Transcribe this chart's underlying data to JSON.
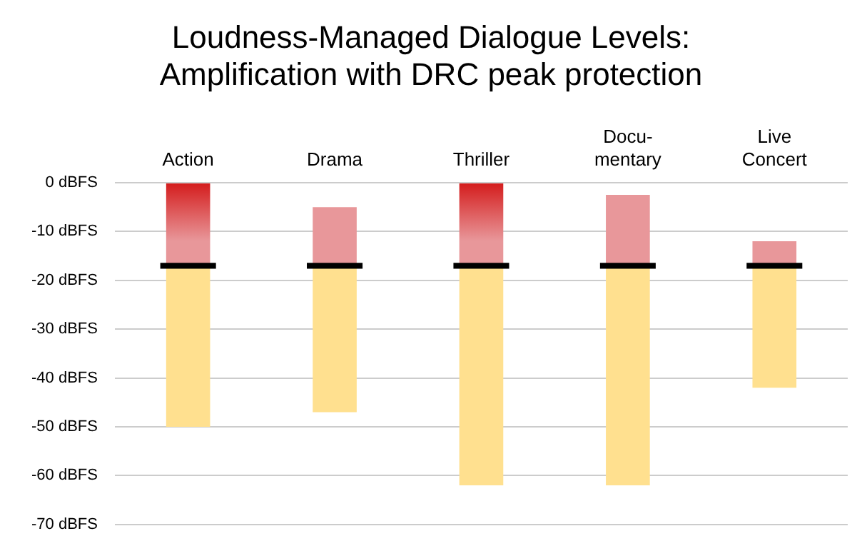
{
  "chart_data": {
    "type": "bar",
    "title": "Loudness-Managed Dialogue Levels:\nAmplification with DRC peak protection",
    "categories": [
      "Action",
      "Drama",
      "Thriller",
      "Docu-\nmentary",
      "Live\nConcert"
    ],
    "series": [
      {
        "color": "#ffe08f",
        "base": [
          -17,
          -17,
          -17,
          -17,
          -17
        ],
        "values": [
          -33,
          -30,
          -45,
          -45,
          -25
        ]
      },
      {
        "color": "#e8979a",
        "colors": [
          "#d41c1c",
          "#e8979a",
          "#d41c1c",
          "#e8979a",
          "#e8979a"
        ],
        "base": [
          -17,
          -17,
          -17,
          -17,
          -17
        ],
        "values": [
          17,
          12,
          17,
          14.5,
          5
        ]
      },
      {
        "color": "#000000",
        "base": [
          -17.6,
          -17.6,
          -17.6,
          -17.6,
          -17.6
        ],
        "values": [
          1.2,
          1.2,
          1.2,
          1.2,
          1.2
        ]
      }
    ],
    "ylim": [
      -70,
      0
    ],
    "yticks": [
      {
        "value": 0,
        "label": "0 dBFS"
      },
      {
        "value": -10,
        "label": "-10 dBFS"
      },
      {
        "value": -20,
        "label": "-20 dBFS"
      },
      {
        "value": -30,
        "label": "-30 dBFS"
      },
      {
        "value": -40,
        "label": "-40 dBFS"
      },
      {
        "value": -50,
        "label": "-50 dBFS"
      },
      {
        "value": -60,
        "label": "-60 dBFS"
      },
      {
        "value": -70,
        "label": "-70 dBFS"
      }
    ],
    "grid": "y",
    "legend": false
  }
}
